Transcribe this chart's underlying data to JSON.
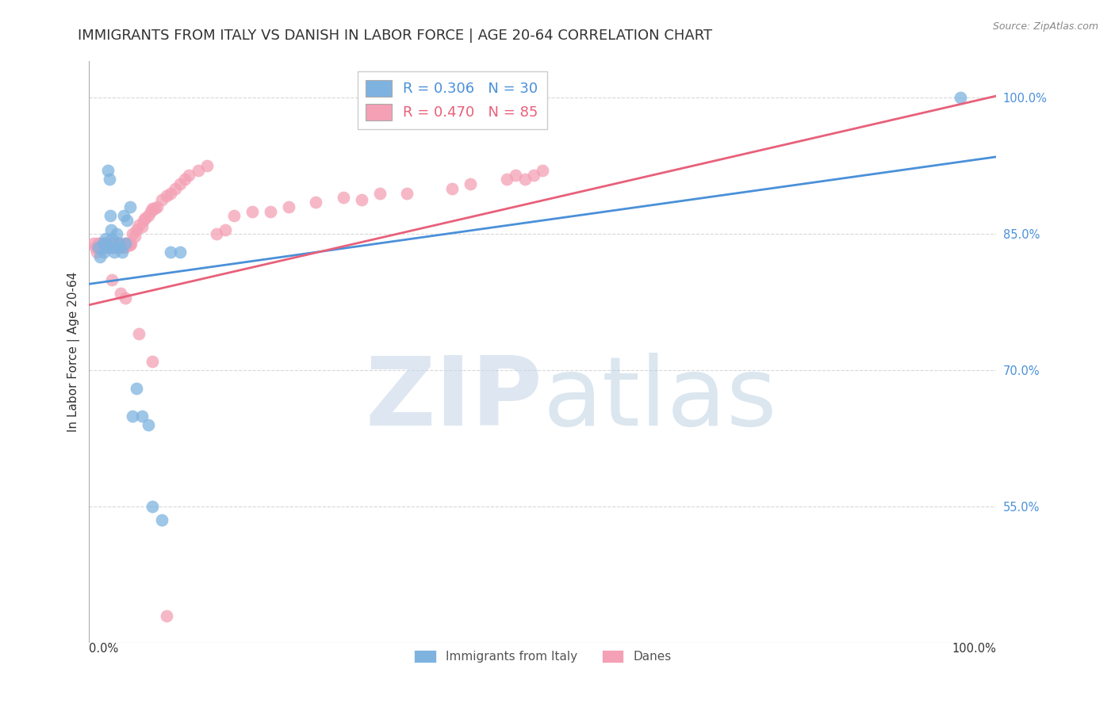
{
  "title": "IMMIGRANTS FROM ITALY VS DANISH IN LABOR FORCE | AGE 20-64 CORRELATION CHART",
  "source": "Source: ZipAtlas.com",
  "ylabel": "In Labor Force | Age 20-64",
  "right_ytick_labels": [
    "100.0%",
    "85.0%",
    "70.0%",
    "55.0%"
  ],
  "right_ytick_values": [
    1.0,
    0.85,
    0.7,
    0.55
  ],
  "xlim": [
    0.0,
    1.0
  ],
  "ylim": [
    0.4,
    1.04
  ],
  "blue_color": "#7eb3e0",
  "pink_color": "#f4a0b5",
  "blue_line_color": "#4a90d9",
  "pink_line_color": "#e8607a",
  "legend_blue_label": "R = 0.306   N = 30",
  "legend_pink_label": "R = 0.470   N = 85",
  "legend_label_blue": "Immigrants from Italy",
  "legend_label_pink": "Danes",
  "blue_x": [
    0.01,
    0.012,
    0.015,
    0.016,
    0.018,
    0.02,
    0.021,
    0.022,
    0.023,
    0.024,
    0.025,
    0.026,
    0.028,
    0.03,
    0.032,
    0.034,
    0.036,
    0.038,
    0.04,
    0.042,
    0.045,
    0.048,
    0.052,
    0.058,
    0.065,
    0.07,
    0.08,
    0.09,
    0.1,
    0.96
  ],
  "blue_y": [
    0.835,
    0.825,
    0.84,
    0.83,
    0.845,
    0.835,
    0.92,
    0.91,
    0.87,
    0.855,
    0.845,
    0.835,
    0.83,
    0.85,
    0.84,
    0.835,
    0.83,
    0.87,
    0.84,
    0.865,
    0.88,
    0.65,
    0.68,
    0.65,
    0.64,
    0.55,
    0.535,
    0.83,
    0.83,
    1.0
  ],
  "pink_x": [
    0.005,
    0.007,
    0.008,
    0.009,
    0.01,
    0.011,
    0.012,
    0.013,
    0.015,
    0.016,
    0.017,
    0.018,
    0.019,
    0.02,
    0.021,
    0.022,
    0.023,
    0.024,
    0.025,
    0.026,
    0.027,
    0.028,
    0.029,
    0.03,
    0.031,
    0.032,
    0.033,
    0.034,
    0.035,
    0.036,
    0.037,
    0.038,
    0.039,
    0.04,
    0.041,
    0.042,
    0.043,
    0.044,
    0.045,
    0.046,
    0.048,
    0.05,
    0.052,
    0.055,
    0.058,
    0.06,
    0.062,
    0.065,
    0.068,
    0.07,
    0.072,
    0.075,
    0.08,
    0.085,
    0.09,
    0.095,
    0.1,
    0.105,
    0.11,
    0.12,
    0.13,
    0.14,
    0.15,
    0.16,
    0.18,
    0.2,
    0.22,
    0.25,
    0.28,
    0.3,
    0.32,
    0.35,
    0.4,
    0.42,
    0.46,
    0.47,
    0.48,
    0.49,
    0.5,
    0.04,
    0.025,
    0.035,
    0.055,
    0.07,
    0.085
  ],
  "pink_y": [
    0.84,
    0.835,
    0.83,
    0.835,
    0.84,
    0.835,
    0.84,
    0.835,
    0.835,
    0.84,
    0.835,
    0.84,
    0.835,
    0.84,
    0.838,
    0.838,
    0.835,
    0.838,
    0.84,
    0.838,
    0.835,
    0.84,
    0.835,
    0.838,
    0.84,
    0.838,
    0.84,
    0.838,
    0.84,
    0.838,
    0.835,
    0.838,
    0.835,
    0.84,
    0.838,
    0.84,
    0.838,
    0.84,
    0.838,
    0.84,
    0.85,
    0.848,
    0.855,
    0.86,
    0.858,
    0.865,
    0.868,
    0.87,
    0.875,
    0.878,
    0.878,
    0.88,
    0.888,
    0.892,
    0.895,
    0.9,
    0.905,
    0.91,
    0.915,
    0.92,
    0.925,
    0.85,
    0.855,
    0.87,
    0.875,
    0.875,
    0.88,
    0.885,
    0.89,
    0.888,
    0.895,
    0.895,
    0.9,
    0.905,
    0.91,
    0.915,
    0.91,
    0.915,
    0.92,
    0.78,
    0.8,
    0.785,
    0.74,
    0.71,
    0.43
  ],
  "blue_line_x0": 0.0,
  "blue_line_x1": 1.0,
  "blue_line_y0": 0.795,
  "blue_line_y1": 0.935,
  "pink_line_x0": 0.0,
  "pink_line_x1": 1.0,
  "pink_line_y0": 0.772,
  "pink_line_y1": 1.002,
  "grid_color": "#d8d8d8",
  "background_color": "#ffffff",
  "title_fontsize": 13,
  "axis_label_fontsize": 11,
  "tick_fontsize": 10.5
}
